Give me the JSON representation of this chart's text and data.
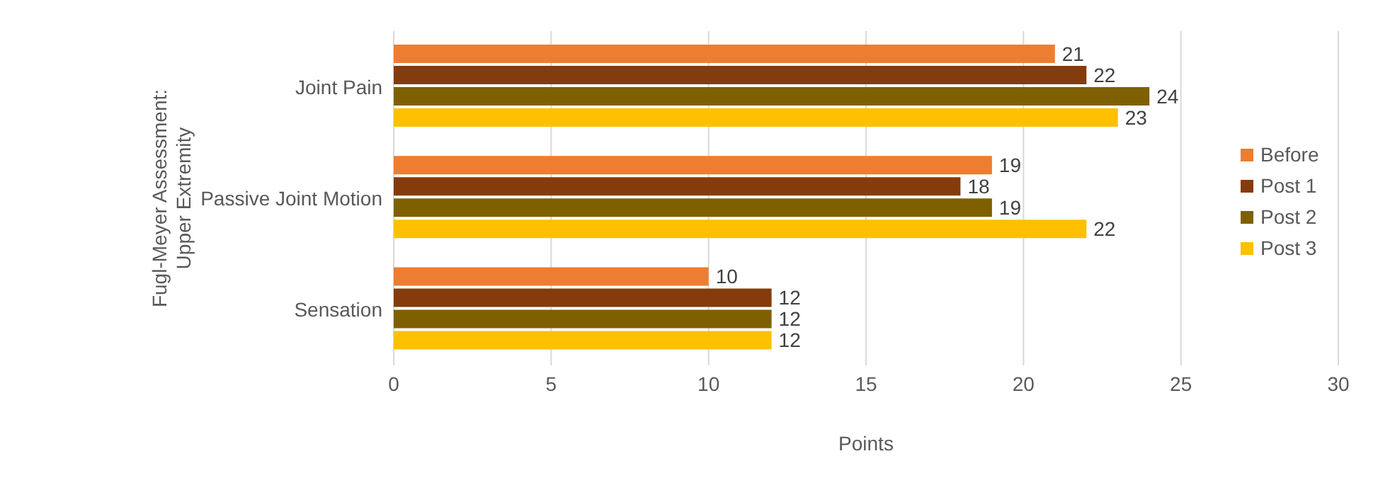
{
  "chart_data": {
    "type": "bar",
    "orientation": "horizontal",
    "ylabel": "Fugl-Meyer Assessment: Upper Extremity",
    "xlabel": "Points",
    "categories": [
      "Joint Pain",
      "Passive Joint Motion",
      "Sensation"
    ],
    "series": [
      {
        "name": "Before",
        "color": "#ed7d31",
        "values": [
          21,
          19,
          10
        ]
      },
      {
        "name": "Post 1",
        "color": "#843c0c",
        "values": [
          22,
          18,
          12
        ]
      },
      {
        "name": "Post 2",
        "color": "#7f6000",
        "values": [
          24,
          19,
          12
        ]
      },
      {
        "name": "Post 3",
        "color": "#ffc000",
        "values": [
          23,
          22,
          12
        ]
      }
    ],
    "xlim": [
      0,
      30
    ],
    "xticks": [
      0,
      5,
      10,
      15,
      20,
      25,
      30
    ],
    "grid": "x",
    "legend": "right",
    "data_labels": true
  }
}
